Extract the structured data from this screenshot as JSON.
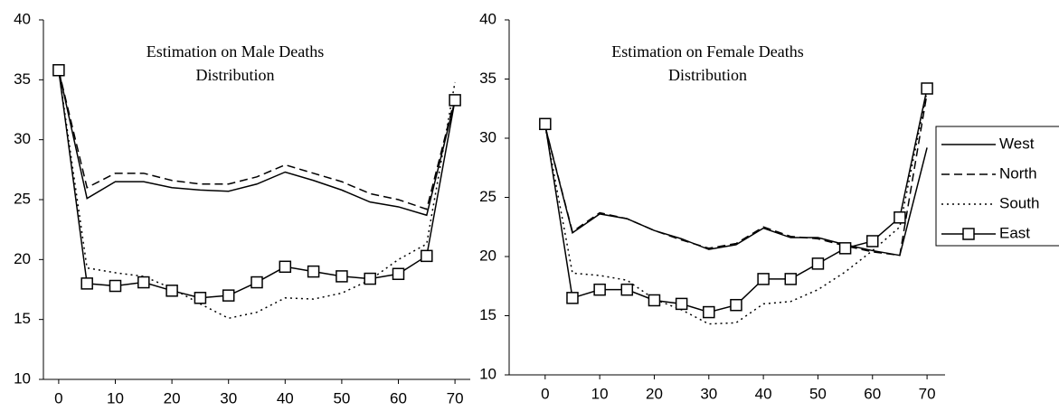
{
  "chart_data": [
    {
      "type": "line",
      "title": "Estimation on Male Deaths Distribution",
      "x": [
        0,
        5,
        10,
        15,
        20,
        25,
        30,
        35,
        40,
        45,
        50,
        55,
        60,
        65,
        70
      ],
      "xlim": [
        -2.7,
        72.7
      ],
      "xticks": [
        0,
        10,
        20,
        30,
        40,
        50,
        60,
        70
      ],
      "ylim": [
        10,
        40
      ],
      "yticks": [
        10,
        15,
        20,
        25,
        30,
        35,
        40
      ],
      "grid": false,
      "series": [
        {
          "color": "#000000",
          "dash": "solid",
          "marker": "none",
          "values": [
            35.8,
            25.1,
            26.5,
            26.5,
            26,
            25.8,
            25.7,
            26.3,
            27.3,
            26.6,
            25.8,
            24.8,
            24.4,
            23.7,
            33.3
          ]
        },
        {
          "color": "#000000",
          "dash": "dashed",
          "marker": "none",
          "values": [
            35.8,
            26,
            27.2,
            27.2,
            26.6,
            26.3,
            26.3,
            26.9,
            27.9,
            27.2,
            26.5,
            25.5,
            25,
            24.2,
            33.5
          ]
        },
        {
          "color": "#000000",
          "dash": "dotted",
          "marker": "none",
          "values": [
            35.8,
            19.3,
            18.9,
            18.6,
            17.6,
            16.3,
            15.1,
            15.6,
            16.8,
            16.7,
            17.2,
            18.3,
            20,
            21.3,
            34.8
          ]
        },
        {
          "color": "#000000",
          "dash": "solid",
          "marker": "square",
          "values": [
            35.8,
            18,
            17.8,
            18.1,
            17.4,
            16.8,
            17,
            18.1,
            19.4,
            19,
            18.6,
            18.4,
            18.8,
            20.3,
            33.3
          ]
        }
      ]
    },
    {
      "type": "line",
      "title": "Estimation on Female Deaths Distribution",
      "x": [
        0,
        5,
        10,
        15,
        20,
        25,
        30,
        35,
        40,
        45,
        50,
        55,
        60,
        65,
        70
      ],
      "xlim": [
        -6.6,
        73.3
      ],
      "xticks": [
        0,
        10,
        20,
        30,
        40,
        50,
        60,
        70
      ],
      "ylim": [
        10,
        40
      ],
      "yticks": [
        10,
        15,
        20,
        25,
        30,
        35,
        40
      ],
      "grid": false,
      "legend": "right",
      "series": [
        {
          "name": "West",
          "color": "#000000",
          "dash": "solid",
          "marker": "none",
          "values": [
            31,
            22,
            23.6,
            23.2,
            22.2,
            21.5,
            20.6,
            21,
            22.4,
            21.6,
            21.6,
            21,
            20.5,
            20.1,
            29.2
          ]
        },
        {
          "name": "North",
          "color": "#000000",
          "dash": "dashed",
          "marker": "none",
          "values": [
            31,
            22.1,
            23.7,
            23.2,
            22.2,
            21.4,
            20.7,
            21.1,
            22.5,
            21.7,
            21.5,
            20.9,
            20.4,
            20.1,
            33.8
          ]
        },
        {
          "name": "South",
          "color": "#000000",
          "dash": "dotted",
          "marker": "none",
          "values": [
            31,
            18.6,
            18.4,
            18,
            16.4,
            15.5,
            14.3,
            14.4,
            16,
            16.2,
            17.2,
            18.7,
            20.5,
            22.5,
            34
          ]
        },
        {
          "name": "East",
          "color": "#000000",
          "dash": "solid",
          "marker": "square",
          "values": [
            31.2,
            16.5,
            17.2,
            17.2,
            16.3,
            16,
            15.3,
            15.9,
            18.1,
            18.1,
            19.4,
            20.7,
            21.3,
            23.3,
            34.2
          ]
        }
      ]
    }
  ]
}
